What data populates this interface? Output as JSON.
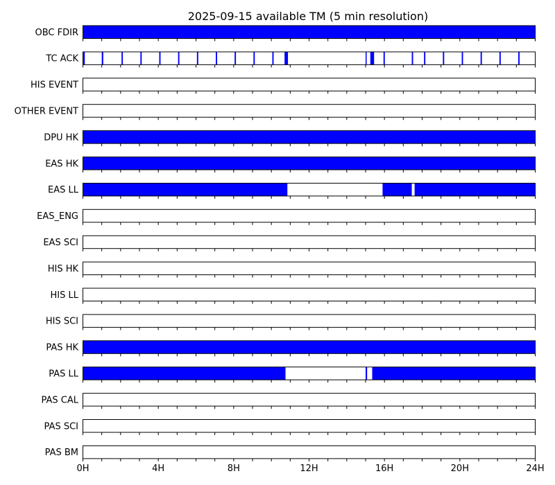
{
  "chart_data": {
    "type": "timeline",
    "title": "2025-09-15 available TM (5 min resolution)",
    "x_unit": "hours",
    "xlim": [
      0,
      24
    ],
    "x_ticks": [
      0,
      4,
      8,
      12,
      16,
      20,
      24
    ],
    "x_tick_labels": [
      "0H",
      "4H",
      "8H",
      "12H",
      "16H",
      "20H",
      "24H"
    ],
    "minor_tick_step": 1,
    "available_color": "#0000ff",
    "empty_color": "#ffffff",
    "rows": [
      {
        "label": "OBC FDIR",
        "intervals": [
          [
            0,
            24
          ]
        ]
      },
      {
        "label": "TC ACK",
        "intervals": [
          [
            0.0,
            0.1
          ],
          [
            1.0,
            1.08
          ],
          [
            2.05,
            2.12
          ],
          [
            3.05,
            3.12
          ],
          [
            4.05,
            4.12
          ],
          [
            5.05,
            5.12
          ],
          [
            6.05,
            6.12
          ],
          [
            7.05,
            7.12
          ],
          [
            8.05,
            8.12
          ],
          [
            9.05,
            9.12
          ],
          [
            10.05,
            10.12
          ],
          [
            10.7,
            10.88
          ],
          [
            15.0,
            15.05
          ],
          [
            15.25,
            15.45
          ],
          [
            15.95,
            16.02
          ],
          [
            17.45,
            17.52
          ],
          [
            18.1,
            18.17
          ],
          [
            19.1,
            19.17
          ],
          [
            20.1,
            20.17
          ],
          [
            21.1,
            21.17
          ],
          [
            22.1,
            22.17
          ],
          [
            23.1,
            23.17
          ]
        ]
      },
      {
        "label": "HIS EVENT",
        "intervals": []
      },
      {
        "label": "OTHER EVENT",
        "intervals": []
      },
      {
        "label": "DPU HK",
        "intervals": [
          [
            0,
            24
          ]
        ]
      },
      {
        "label": "EAS HK",
        "intervals": [
          [
            0,
            24
          ]
        ]
      },
      {
        "label": "EAS LL",
        "intervals": [
          [
            0,
            10.85
          ],
          [
            15.9,
            17.45
          ],
          [
            17.6,
            24
          ]
        ]
      },
      {
        "label": "EAS_ENG",
        "intervals": []
      },
      {
        "label": "EAS SCI",
        "intervals": []
      },
      {
        "label": "HIS HK",
        "intervals": []
      },
      {
        "label": "HIS LL",
        "intervals": []
      },
      {
        "label": "HIS SCI",
        "intervals": []
      },
      {
        "label": "PAS HK",
        "intervals": [
          [
            0,
            24
          ]
        ]
      },
      {
        "label": "PAS LL",
        "intervals": [
          [
            0,
            10.75
          ],
          [
            15.0,
            15.08
          ],
          [
            15.35,
            24
          ]
        ]
      },
      {
        "label": "PAS CAL",
        "intervals": []
      },
      {
        "label": "PAS SCI",
        "intervals": []
      },
      {
        "label": "PAS BM",
        "intervals": []
      }
    ]
  }
}
